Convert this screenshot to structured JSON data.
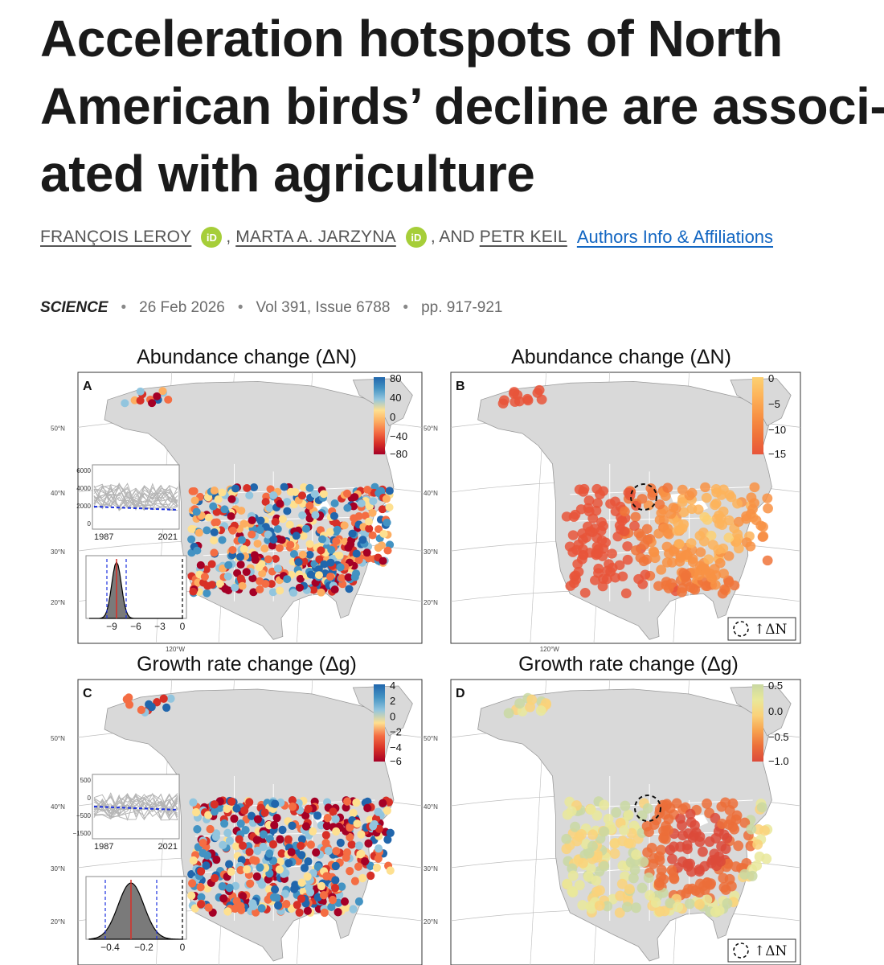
{
  "article": {
    "title_lines": [
      "Acceleration hotspots of North",
      "American birds’ decline are associ-",
      "ated with agriculture"
    ],
    "authors": [
      "FRANÇOIS LEROY",
      "MARTA A. JARZYNA",
      "PETR KEIL"
    ],
    "orcid_label": "iD",
    "comma": ",",
    "and_text": ", AND",
    "affiliations_link": "Authors Info & Affiliations",
    "journal": "SCIENCE",
    "date": "26 Feb 2026",
    "volume": "Vol 391, Issue 6788",
    "pages": "pp. 917-921"
  },
  "figure": {
    "panels": [
      {
        "letter": "A",
        "title": "Abundance change (ΔN)",
        "legend": [
          "80",
          "40",
          "0",
          "−40",
          "−80"
        ],
        "colors": [
          "#2166ac",
          "#4393c3",
          "#92c5de",
          "#fee090",
          "#fdae61",
          "#f46d43",
          "#d73027",
          "#a50026"
        ],
        "inset_ts": {
          "yticks": [
            "6000",
            "4000",
            "2000",
            "0"
          ],
          "xticks": [
            "1987",
            "2021"
          ]
        },
        "inset_hist": {
          "xticks": [
            "−9",
            "−6",
            "−3",
            "0"
          ]
        }
      },
      {
        "letter": "B",
        "title": "Abundance change (ΔN)",
        "legend": [
          "0",
          "−5",
          "−10",
          "−15"
        ],
        "colors": [
          "#fcd072",
          "#fdb35a",
          "#f89244",
          "#f07439",
          "#e8553a"
        ],
        "hotspot_label": "↑ΔN"
      },
      {
        "letter": "C",
        "title": "Growth rate change (Δg)",
        "legend": [
          "4",
          "2",
          "0",
          "−2",
          "−4",
          "−6"
        ],
        "colors": [
          "#2166ac",
          "#4393c3",
          "#92c5de",
          "#fee090",
          "#f46d43",
          "#d73027",
          "#a50026"
        ],
        "inset_ts": {
          "yticks": [
            "500",
            "0",
            "−500",
            "−1500"
          ],
          "xticks": [
            "1987",
            "2021"
          ]
        },
        "inset_hist": {
          "xticks": [
            "−0.4",
            "−0.2",
            "0"
          ]
        }
      },
      {
        "letter": "D",
        "title": "Growth rate change (Δg)",
        "legend": [
          "0.5",
          "0.0",
          "−0.5",
          "−1.0"
        ],
        "colors": [
          "#c9d8a2",
          "#e9e89a",
          "#fad27a",
          "#f7a24e",
          "#ec6f3a",
          "#dc4a3a"
        ],
        "hotspot_label": "↑ΔN"
      }
    ],
    "lat_labels": [
      "50°N",
      "40°N",
      "30°N",
      "20°N"
    ],
    "lon_label": "120°W",
    "map_colors": {
      "land": "#d9d9d9",
      "border": "#ffffff",
      "grid": "#bdbdbd"
    }
  }
}
